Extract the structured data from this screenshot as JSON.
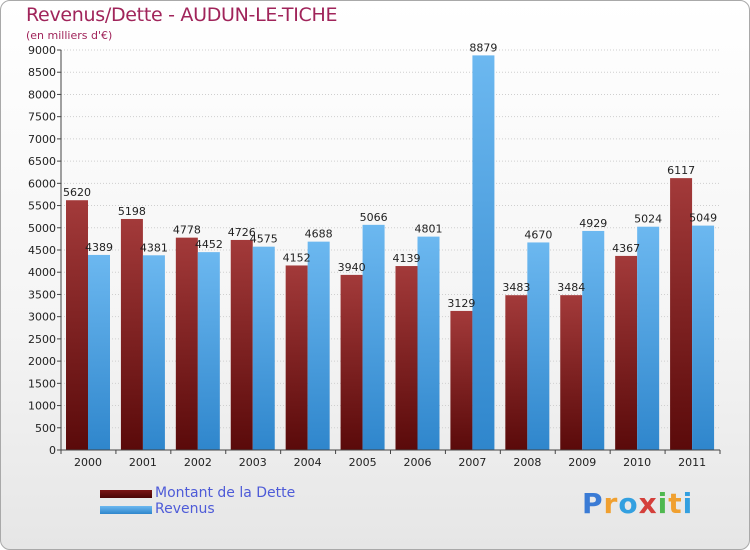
{
  "header": {
    "title": "Revenus/Dette - AUDUN-LE-TICHE",
    "subtitle": "(en milliers d'€)"
  },
  "legend": {
    "debt_label": "Montant de la Dette",
    "revenue_label": "Revenus"
  },
  "logo": {
    "letters": [
      "P",
      "r",
      "o",
      "x",
      "i",
      "t",
      "i"
    ],
    "colors": [
      "#3a7bd5",
      "#f0a030",
      "#33a0e0",
      "#d43f3a",
      "#4fb84f",
      "#f0a030",
      "#33a0e0"
    ]
  },
  "colors": {
    "debt_top": "#a33a3a",
    "debt_bottom": "#5a0a0a",
    "revenue_top": "#6cb8f0",
    "revenue_bottom": "#2f86cc",
    "axis": "#444444",
    "grid": "#cfcfcf"
  },
  "chart_data": {
    "type": "bar",
    "title": "Revenus/Dette - AUDUN-LE-TICHE",
    "subtitle": "(en milliers d'€)",
    "categories": [
      "2000",
      "2001",
      "2002",
      "2003",
      "2004",
      "2005",
      "2006",
      "2007",
      "2008",
      "2009",
      "2010",
      "2011"
    ],
    "series": [
      {
        "name": "Montant de la Dette",
        "values": [
          5620,
          5198,
          4778,
          4726,
          4152,
          3940,
          4139,
          3129,
          3483,
          3484,
          4367,
          6117
        ]
      },
      {
        "name": "Revenus",
        "values": [
          4389,
          4381,
          4452,
          4575,
          4688,
          5066,
          4801,
          8879,
          4670,
          4929,
          5024,
          5049
        ]
      }
    ],
    "ylim": [
      0,
      9000
    ],
    "yticks": [
      0,
      500,
      1000,
      1500,
      2000,
      2500,
      3000,
      3500,
      4000,
      4500,
      5000,
      5500,
      6000,
      6500,
      7000,
      7500,
      8000,
      8500,
      9000
    ],
    "grid": true,
    "legend_position": "bottom-left"
  }
}
